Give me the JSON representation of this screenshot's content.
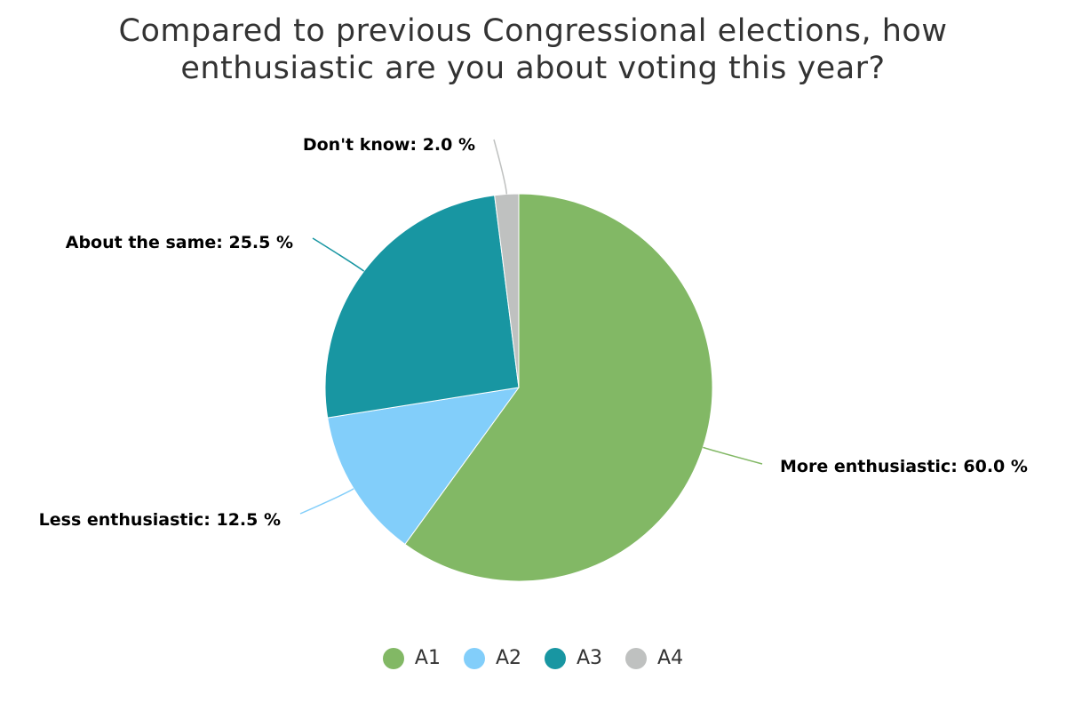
{
  "chart_data": {
    "type": "pie",
    "title": "Compared to previous Congressional elections, how enthusiastic are you about voting this year?",
    "title_lines": [
      "Compared to previous Congressional elections, how",
      "enthusiastic are you about voting this year?"
    ],
    "slices": [
      {
        "legend": "A1",
        "label": "More enthusiastic",
        "value": 60.0,
        "display": "More enthusiastic: 60.0 %",
        "color": "#82b865"
      },
      {
        "legend": "A2",
        "label": "Less enthusiastic",
        "value": 12.5,
        "display": "Less enthusiastic: 12.5 %",
        "color": "#82cefa"
      },
      {
        "legend": "A3",
        "label": "About the same",
        "value": 25.5,
        "display": "About the same: 25.5 %",
        "color": "#1896a2"
      },
      {
        "legend": "A4",
        "label": "Don't know",
        "value": 2.0,
        "display": "Don't know: 2.0 %",
        "color": "#bfc1c0"
      }
    ],
    "legend_placement": "bottom"
  }
}
